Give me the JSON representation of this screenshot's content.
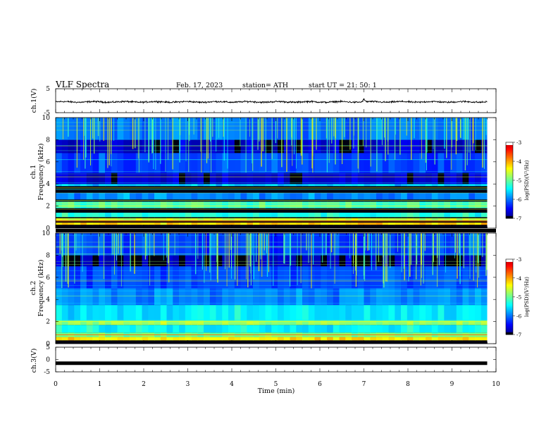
{
  "header": {
    "title": "VLF  Spectra",
    "date": "Feb. 17, 2023",
    "station": "station= ATH",
    "start": "start  UT  =    21: 50: 1"
  },
  "colors": {
    "background": "#ffffff",
    "axis": "#000000",
    "spectrogram_floor": "#000010"
  },
  "chart_data": [
    {
      "type": "line",
      "id": "ch1-waveform",
      "ylabel": "ch.1(V)",
      "ylim": [
        -5,
        5
      ],
      "yticks": [
        "5",
        "-5"
      ],
      "xlim": [
        0,
        10
      ],
      "series": [
        {
          "description": "noise waveform around -0.5 V, amplitude ~0.5 V, spike near t=7.0 min",
          "baseline": -0.5,
          "amplitude": 0.5,
          "t_end": 9.8
        }
      ]
    },
    {
      "type": "heatmap",
      "id": "ch1-spectrogram",
      "ylabel": "ch.1\nFrequency (kHz)",
      "ylim": [
        0,
        10
      ],
      "yticks": [
        "0",
        "2",
        "4",
        "6",
        "8",
        "10"
      ],
      "xlim": [
        0,
        10
      ],
      "t_end": 9.8,
      "colorbar": {
        "label": "log(PSD)(V²/Hz)",
        "ticks": [
          "-3",
          "-4",
          "-5",
          "-6",
          "-7"
        ],
        "range": [
          -7,
          -3
        ]
      },
      "bands_khz": [
        {
          "f": [
            0.3,
            0.5
          ],
          "level": -4.2
        },
        {
          "f": [
            0.7,
            0.9
          ],
          "level": -4.6
        },
        {
          "f": [
            1.0,
            1.4
          ],
          "level": -5.3
        },
        {
          "f": [
            1.8,
            2.4
          ],
          "level": -5.1
        },
        {
          "f": [
            2.6,
            3.2
          ],
          "level": -5.9
        },
        {
          "f": [
            3.8,
            4.0
          ],
          "level": -5.6
        },
        {
          "f": [
            4.0,
            5.0
          ],
          "level": -6.7
        },
        {
          "f": [
            5.0,
            6.8
          ],
          "level": -6.2
        },
        {
          "f": [
            6.8,
            8.0
          ],
          "level": -6.7
        },
        {
          "f": [
            8.0,
            10.0
          ],
          "level": -6.0
        }
      ]
    },
    {
      "type": "heatmap",
      "id": "ch2-spectrogram",
      "ylabel": "ch.2\nFrequency (kHz)",
      "ylim": [
        0,
        10
      ],
      "yticks": [
        "0",
        "2",
        "4",
        "6",
        "8",
        "10"
      ],
      "xlim": [
        0,
        10
      ],
      "t_end": 9.8,
      "colorbar": {
        "label": "log(PSD)(V²/Hz)",
        "ticks": [
          "-3",
          "-4",
          "-5",
          "-6",
          "-7"
        ],
        "range": [
          -7,
          -3
        ]
      },
      "bands_khz": [
        {
          "f": [
            0.3,
            0.6
          ],
          "level": -4.3
        },
        {
          "f": [
            0.6,
            1.0
          ],
          "level": -4.9
        },
        {
          "f": [
            1.0,
            1.7
          ],
          "level": -5.4
        },
        {
          "f": [
            1.7,
            2.1
          ],
          "level": -4.7
        },
        {
          "f": [
            2.1,
            3.5
          ],
          "level": -5.5
        },
        {
          "f": [
            3.5,
            5.0
          ],
          "level": -5.9
        },
        {
          "f": [
            5.0,
            7.0
          ],
          "level": -6.2
        },
        {
          "f": [
            7.0,
            8.0
          ],
          "level": -6.8
        },
        {
          "f": [
            8.0,
            10.0
          ],
          "level": -6.2
        }
      ]
    },
    {
      "type": "line",
      "id": "ch3-waveform",
      "ylabel": "ch.3(V)",
      "ylim": [
        -5,
        5
      ],
      "yticks": [
        "5",
        "0",
        "-5"
      ],
      "xlim": [
        0,
        10
      ],
      "xlabel": "Time  (min)",
      "xticks": [
        "0",
        "1",
        "2",
        "3",
        "4",
        "5",
        "6",
        "7",
        "8",
        "9",
        "10"
      ],
      "series": [
        {
          "description": "flat signal at -1.5 V",
          "baseline": -1.5,
          "amplitude": 0.15,
          "t_end": 9.8
        }
      ]
    }
  ]
}
